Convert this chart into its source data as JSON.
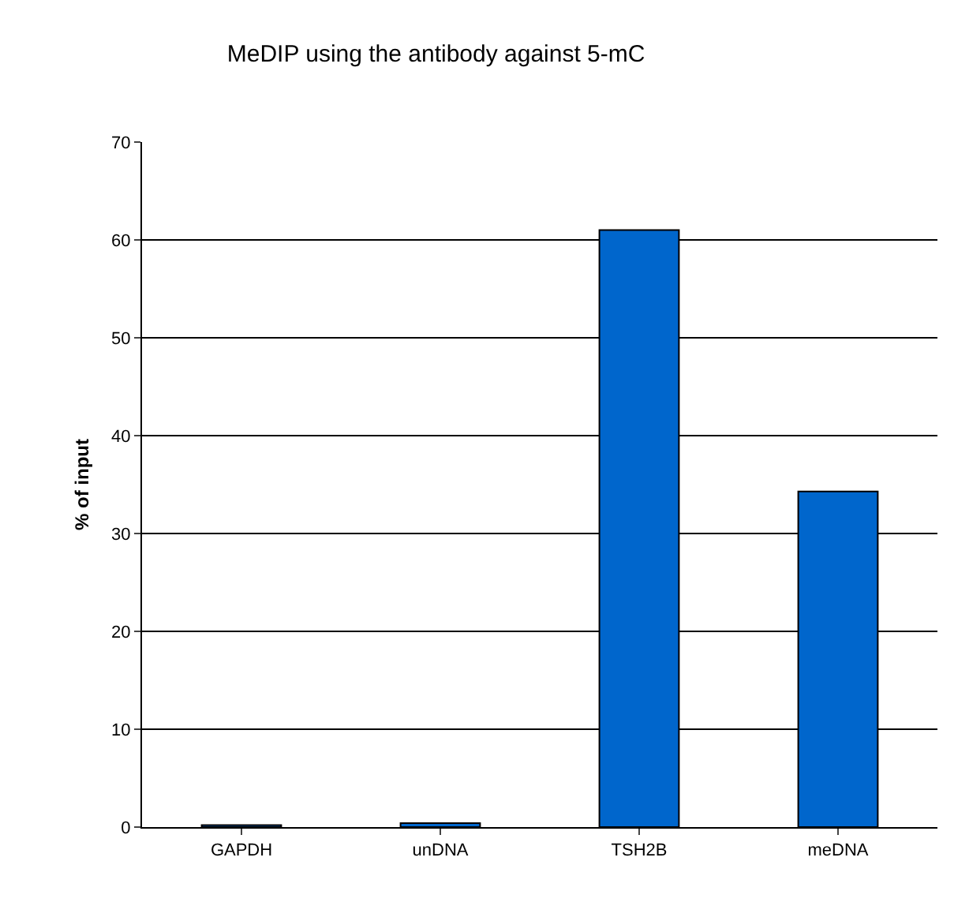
{
  "chart_data": {
    "type": "bar",
    "title": "MeDIP using the antibody against 5-mC",
    "ylabel": "% of input",
    "categories": [
      "GAPDH",
      "unDNA",
      "TSH2B",
      "meDNA"
    ],
    "values": [
      0.2,
      0.4,
      61,
      34.3
    ],
    "color": "#0066cc",
    "ylim": [
      0,
      70
    ],
    "yticks": [
      0,
      10,
      20,
      30,
      40,
      50,
      60,
      70
    ],
    "grid": "y"
  }
}
